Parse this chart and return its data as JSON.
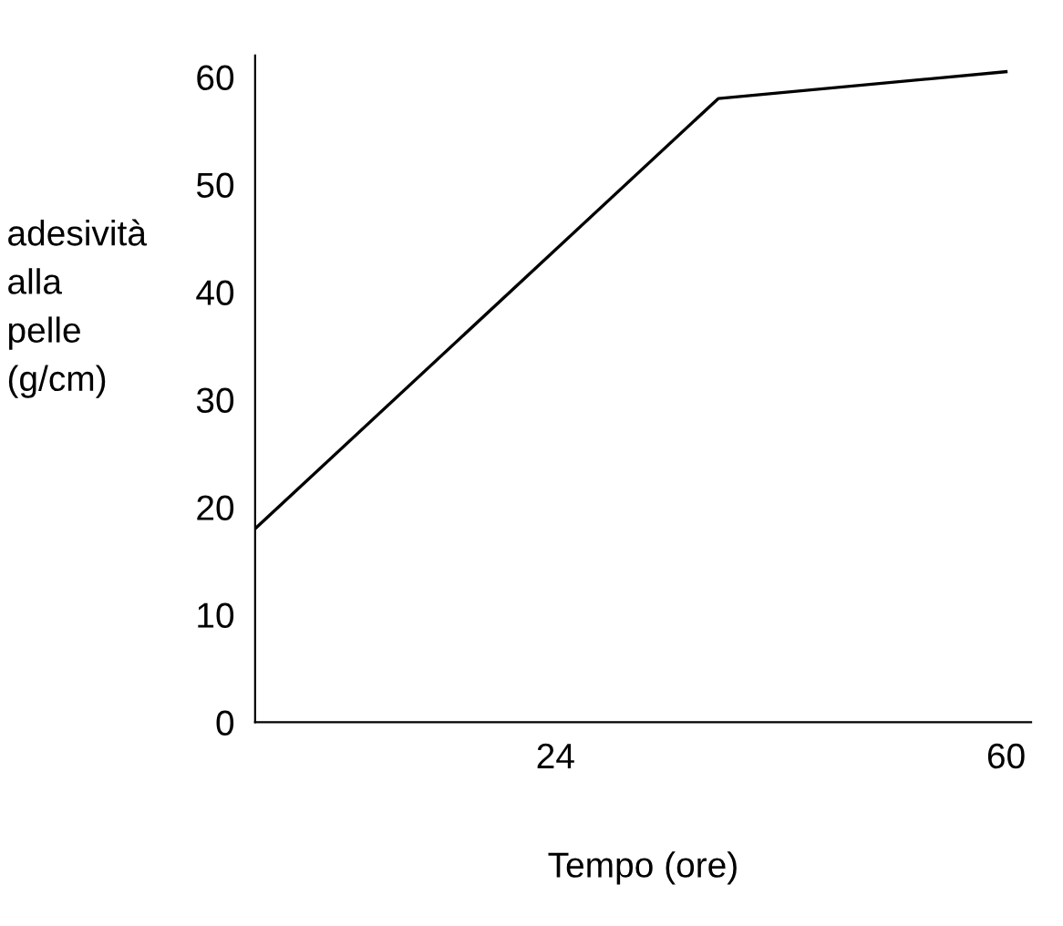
{
  "chart_data": {
    "type": "line",
    "xlabel": "Tempo (ore)",
    "ylabel": "adesività alla pelle (g/cm)",
    "x": [
      0,
      37,
      60
    ],
    "series": [
      {
        "color": "#000000",
        "values": [
          18,
          58,
          60.5
        ]
      }
    ],
    "xlim": [
      0,
      62
    ],
    "ylim": [
      0,
      62
    ],
    "xticks": [
      24,
      60
    ],
    "yticks": [
      0,
      10,
      20,
      30,
      40,
      50,
      60
    ],
    "grid": false,
    "marker": "none",
    "line_style": "solid"
  }
}
